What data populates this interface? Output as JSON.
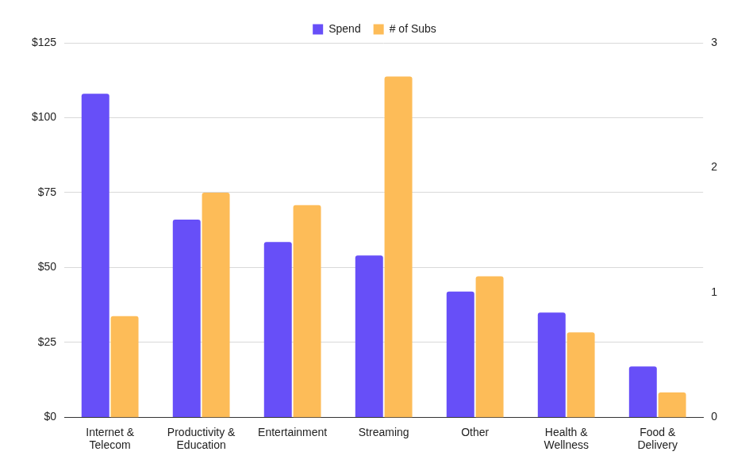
{
  "chart_data": {
    "type": "bar",
    "categories": [
      "Internet & Telecom",
      "Productivity & Education",
      "Entertainment",
      "Streaming",
      "Other",
      "Health & Wellness",
      "Food & Delivery"
    ],
    "series": [
      {
        "name": "Spend",
        "color": "#674ff8",
        "values": [
          108,
          66,
          58.5,
          54,
          42,
          35,
          17
        ]
      },
      {
        "name": "# of Subs",
        "color": "#fdbc58",
        "values": [
          0.81,
          1.8,
          1.7,
          2.73,
          1.13,
          0.68,
          0.2
        ],
        "axis": "y2"
      }
    ],
    "ylim": [
      0,
      125
    ],
    "yticks": [
      {
        "value": 0,
        "label": "$0"
      },
      {
        "value": 25,
        "label": "$25"
      },
      {
        "value": 50,
        "label": "$50"
      },
      {
        "value": 75,
        "label": "$75"
      },
      {
        "value": 100,
        "label": "$100"
      },
      {
        "value": 125,
        "label": "$125"
      }
    ],
    "y2lim": [
      0,
      3
    ],
    "y2ticks": [
      0,
      1,
      2,
      3
    ],
    "grid": true,
    "legend": "top"
  }
}
